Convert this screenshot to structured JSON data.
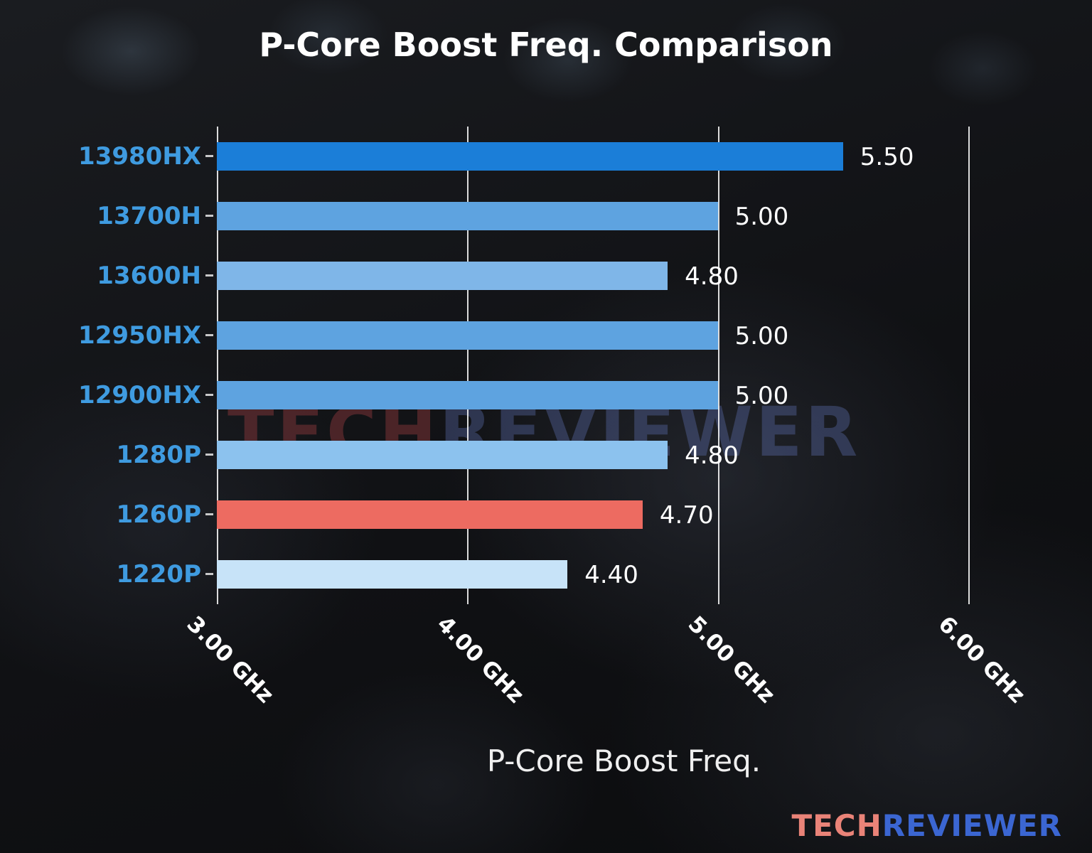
{
  "title": "P-Core Boost Freq. Comparison",
  "xlabel": "P-Core Boost Freq.",
  "watermark": {
    "part1": "TECH",
    "part2": "REVIEWER"
  },
  "logo": {
    "part1": "TECH",
    "part2": "REVIEWER"
  },
  "colors": {
    "category_label": "#3f9be0",
    "highlight_bar": "#ed6b61",
    "gridline": "rgba(255,255,255,0.85)",
    "logo_tech": "#e98378",
    "logo_reviewer": "#3b66d2"
  },
  "chart_data": {
    "type": "bar",
    "orientation": "horizontal",
    "title": "P-Core Boost Freq. Comparison",
    "xlabel": "P-Core Boost Freq.",
    "ylabel": "",
    "categories": [
      "13980HX",
      "13700H",
      "13600H",
      "12950HX",
      "12900HX",
      "1280P",
      "1260P",
      "1220P"
    ],
    "values": [
      5.5,
      5.0,
      4.8,
      5.0,
      5.0,
      4.8,
      4.7,
      4.4
    ],
    "value_labels": [
      "5.50",
      "5.00",
      "4.80",
      "5.00",
      "5.00",
      "4.80",
      "4.70",
      "4.40"
    ],
    "bar_colors": [
      "#1b7ed8",
      "#5ea3e0",
      "#7fb6e8",
      "#5ea3e0",
      "#5ea3e0",
      "#8cc2ee",
      "#ed6b61",
      "#c7e3f8"
    ],
    "unit": "GHz",
    "x_ticks": [
      "3.00 GHz",
      "4.00 GHz",
      "5.00 GHz",
      "6.00 GHz"
    ],
    "x_tick_values": [
      3.0,
      4.0,
      5.0,
      6.0
    ],
    "xlim": [
      3.0,
      6.25
    ],
    "grid": true,
    "legend": "none",
    "notes": "bars start at 3.00 GHz axis origin; 1260P highlighted in red"
  }
}
